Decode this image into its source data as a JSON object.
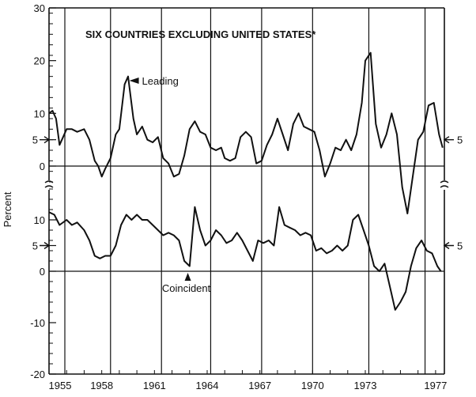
{
  "chart_data": {
    "type": "line",
    "title": "SIX COUNTRIES EXCLUDING UNITED STATES*",
    "ylabel": "Percent",
    "xlabel": "",
    "x_ticks": [
      "1955",
      "1958",
      "1961",
      "1964",
      "1967",
      "1970",
      "1973",
      "1977"
    ],
    "panels": [
      {
        "name": "upper",
        "ylim": [
          -3,
          30
        ],
        "y_ticks": [
          0,
          5,
          10,
          20,
          30
        ],
        "reference_value": 5,
        "reference_label": "5",
        "series": [
          {
            "name": "Leading",
            "x": [
              1955.0,
              1955.2,
              1955.4,
              1955.6,
              1955.8,
              1956.0,
              1956.3,
              1956.6,
              1957.0,
              1957.3,
              1957.6,
              1957.8,
              1958.0,
              1958.2,
              1958.5,
              1958.8,
              1959.0,
              1959.3,
              1959.5,
              1959.8,
              1960.0,
              1960.3,
              1960.6,
              1960.9,
              1961.2,
              1961.5,
              1961.8,
              1962.1,
              1962.4,
              1962.7,
              1963.0,
              1963.3,
              1963.6,
              1963.9,
              1964.2,
              1964.5,
              1964.8,
              1965.0,
              1965.3,
              1965.6,
              1965.9,
              1966.2,
              1966.5,
              1966.8,
              1967.1,
              1967.4,
              1967.7,
              1968.0,
              1968.3,
              1968.6,
              1968.9,
              1969.2,
              1969.5,
              1969.8,
              1970.1,
              1970.4,
              1970.7,
              1971.0,
              1971.3,
              1971.6,
              1971.9,
              1972.2,
              1972.5,
              1972.8,
              1973.0,
              1973.3,
              1973.6,
              1973.9,
              1974.2,
              1974.5,
              1974.8,
              1975.1,
              1975.4,
              1975.7,
              1976.0,
              1976.3,
              1976.6,
              1976.9,
              1977.2,
              1977.4
            ],
            "values": [
              10,
              10.5,
              9,
              4,
              5.5,
              7,
              7,
              6.5,
              7,
              5,
              1,
              0,
              -2,
              -0.5,
              1.5,
              6,
              7,
              15.5,
              17,
              9,
              6,
              7.5,
              5,
              4.5,
              5.5,
              1.5,
              0.5,
              -2,
              -1.5,
              2,
              7,
              8.5,
              6.5,
              6,
              3.5,
              3,
              3.5,
              1.5,
              1,
              1.5,
              5.5,
              6.5,
              5.5,
              0.5,
              1,
              4,
              6,
              9,
              6,
              3,
              8,
              10,
              7.5,
              7,
              6.5,
              3,
              -2,
              0.5,
              3.5,
              3,
              5,
              3,
              6,
              12,
              20,
              21.5,
              8,
              3.5,
              6,
              10,
              6,
              -4,
              -9,
              -2,
              5,
              6.5,
              11.5,
              12,
              6,
              3.5
            ]
          }
        ]
      },
      {
        "name": "lower",
        "ylim": [
          -20,
          16
        ],
        "y_ticks": [
          -20,
          -10,
          0,
          5,
          10
        ],
        "reference_value": 5,
        "reference_label": "5",
        "series": [
          {
            "name": "Coincident",
            "x": [
              1955.0,
              1955.3,
              1955.6,
              1956.0,
              1956.3,
              1956.6,
              1957.0,
              1957.3,
              1957.6,
              1957.9,
              1958.2,
              1958.5,
              1958.8,
              1959.1,
              1959.4,
              1959.7,
              1960.0,
              1960.3,
              1960.6,
              1960.9,
              1961.2,
              1961.5,
              1961.8,
              1962.1,
              1962.4,
              1962.7,
              1963.0,
              1963.3,
              1963.6,
              1963.9,
              1964.2,
              1964.5,
              1964.8,
              1965.1,
              1965.4,
              1965.7,
              1966.0,
              1966.3,
              1966.6,
              1966.9,
              1967.2,
              1967.5,
              1967.8,
              1968.1,
              1968.4,
              1968.7,
              1969.0,
              1969.3,
              1969.6,
              1969.9,
              1970.2,
              1970.5,
              1970.8,
              1971.1,
              1971.4,
              1971.7,
              1972.0,
              1972.3,
              1972.6,
              1972.9,
              1973.2,
              1973.5,
              1973.8,
              1974.1,
              1974.4,
              1974.7,
              1975.0,
              1975.3,
              1975.6,
              1975.9,
              1976.2,
              1976.5,
              1976.8,
              1977.1,
              1977.3
            ],
            "values": [
              11.5,
              11,
              9,
              10,
              9,
              9.5,
              8,
              6,
              3,
              2.5,
              3,
              3,
              5,
              9,
              11,
              10,
              11,
              10,
              10,
              9,
              8,
              7,
              7.5,
              7,
              6,
              2,
              1,
              12.5,
              8,
              5,
              6,
              8,
              7,
              5.5,
              6,
              7.5,
              6,
              4,
              2,
              6,
              5.5,
              6,
              5,
              12.5,
              9,
              8.5,
              8,
              7,
              7.5,
              7,
              4,
              4.5,
              3.5,
              4,
              5,
              4,
              5,
              10,
              11,
              8,
              5,
              1,
              0,
              1.5,
              -3,
              -7.5,
              -6,
              -4,
              1,
              4.5,
              6,
              4,
              3.5,
              1,
              0
            ]
          }
        ]
      }
    ],
    "annotations": [
      {
        "text": "Leading",
        "points_to_year": 1959.3
      },
      {
        "text": "Coincident",
        "points_to_year": 1962.9
      }
    ]
  }
}
